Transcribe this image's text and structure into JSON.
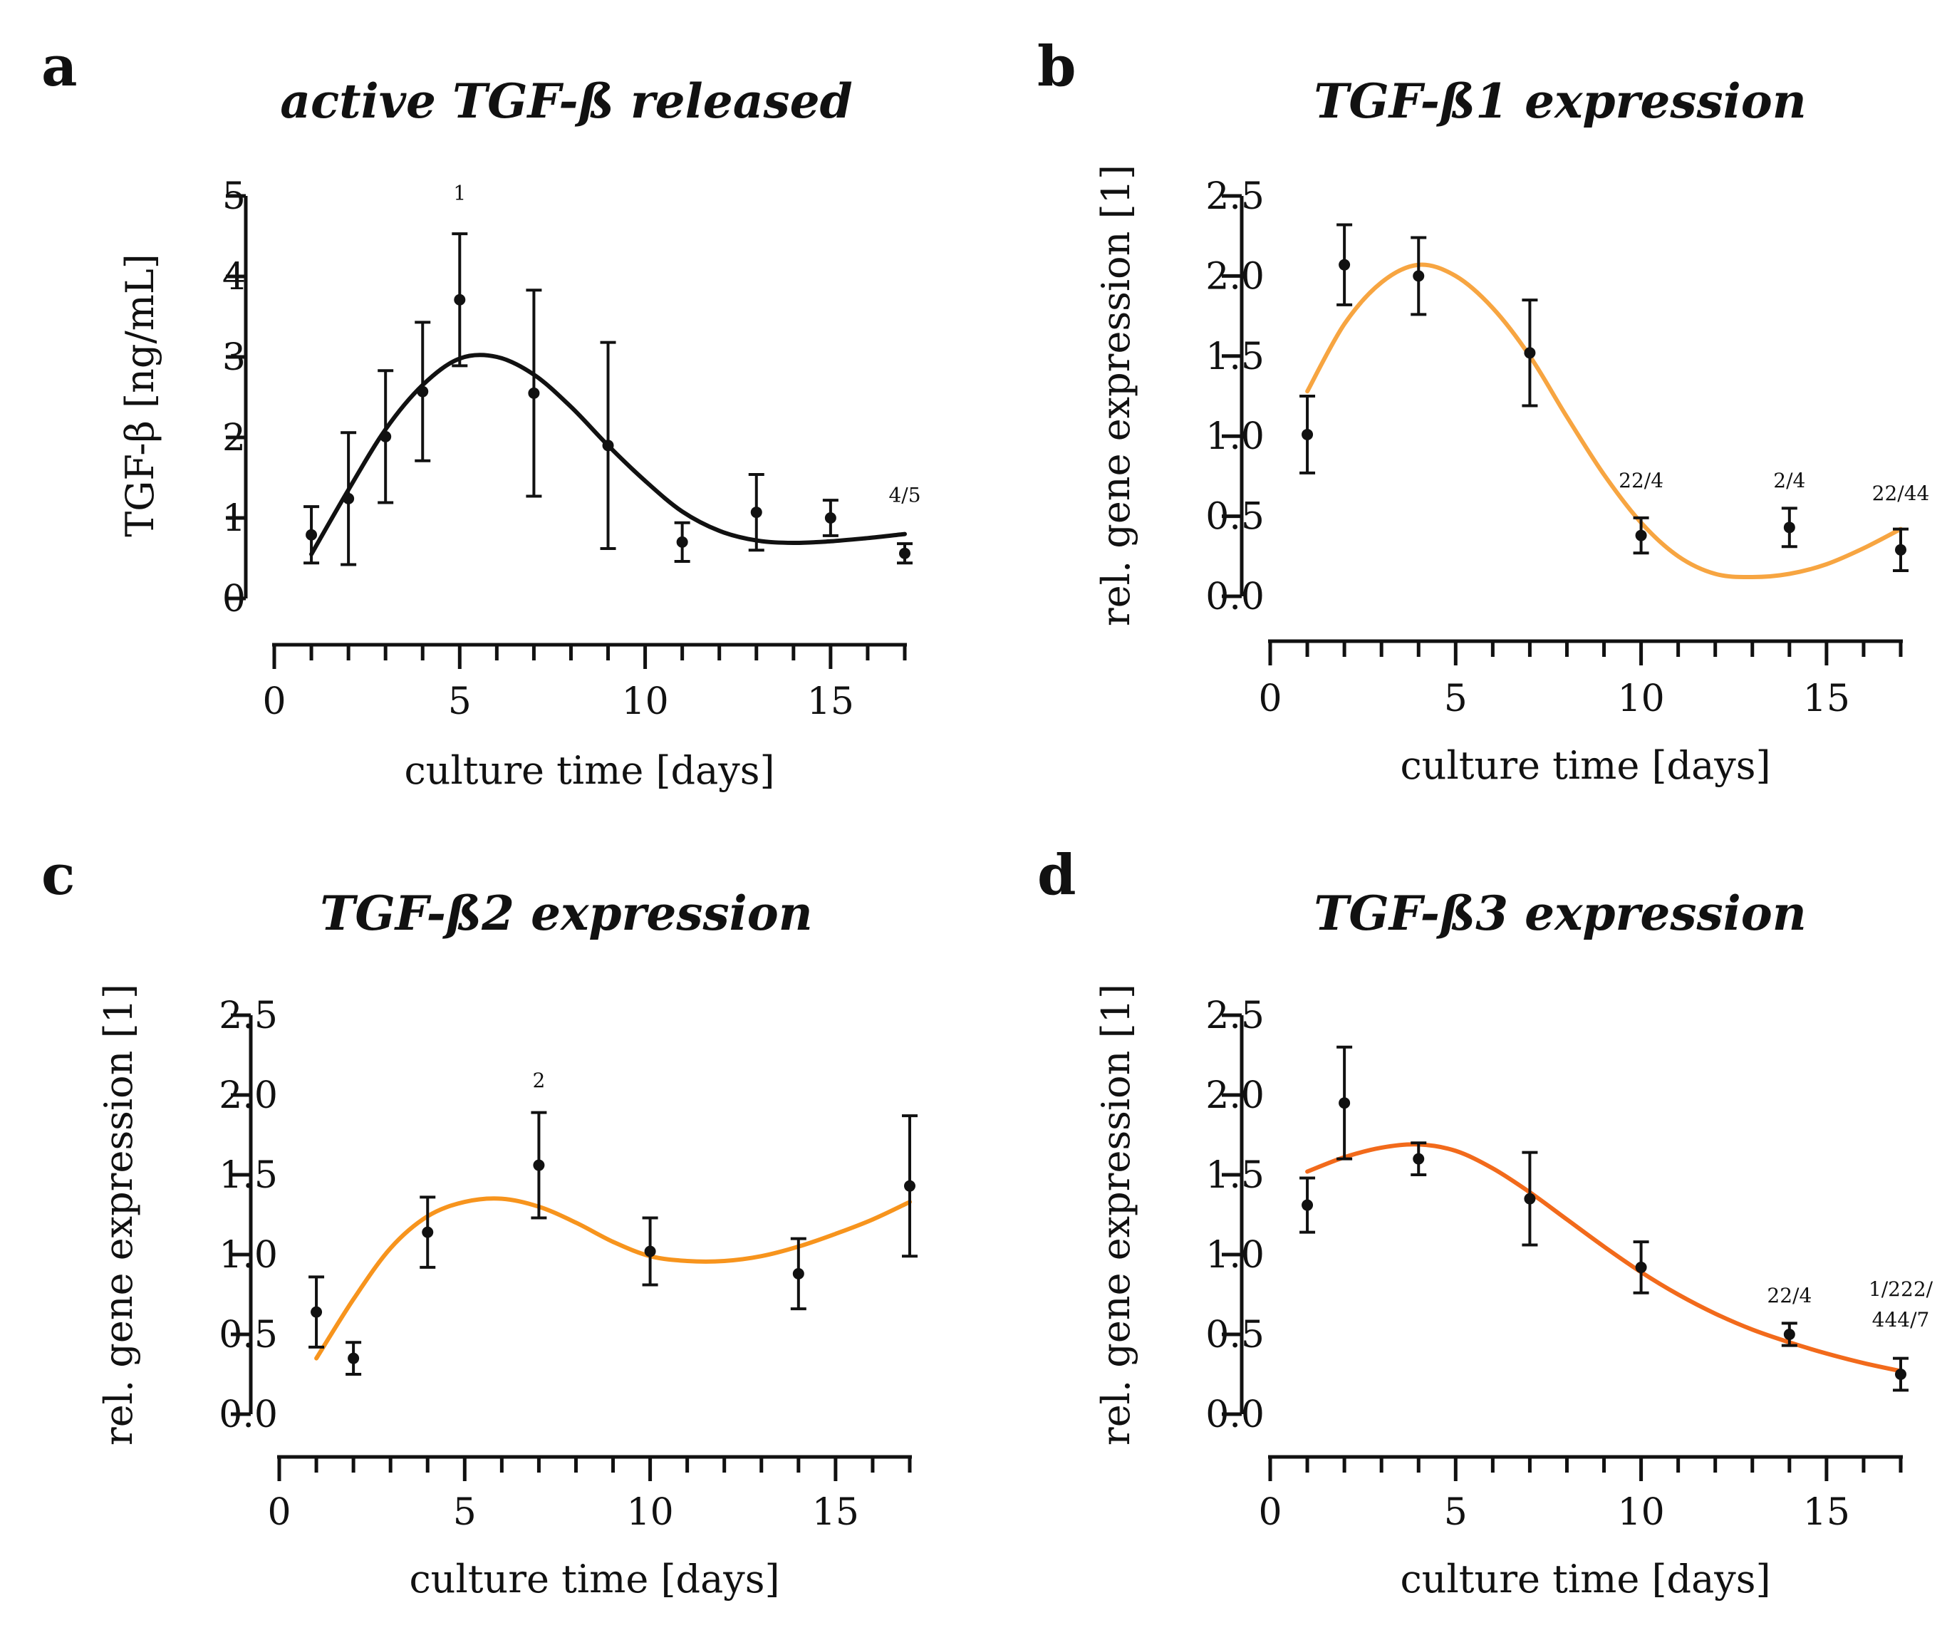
{
  "figure": "TGF-beta release and expression over culture time",
  "chart_data": [
    {
      "type": "scatter",
      "panel": "a",
      "title": "active TGF-ß released",
      "xlabel": "culture time [days]",
      "ylabel": "TGF-β [ng/mL]",
      "xlim": [
        0,
        17
      ],
      "ylim": [
        0,
        5
      ],
      "xticks": [
        "0",
        "5",
        "10",
        "15"
      ],
      "yticks": [
        "0",
        "1",
        "2",
        "3",
        "4",
        "5"
      ],
      "points": {
        "x": [
          1,
          2,
          3,
          4,
          5,
          7,
          9,
          11,
          13,
          15,
          17
        ],
        "y": [
          0.79,
          1.24,
          2.01,
          2.57,
          3.71,
          2.55,
          1.9,
          0.7,
          1.07,
          1.0,
          0.56
        ],
        "err": [
          0.35,
          0.82,
          0.82,
          0.86,
          0.82,
          1.28,
          1.28,
          0.24,
          0.47,
          0.22,
          0.12
        ]
      },
      "fit": {
        "x": [
          1,
          2,
          3,
          4,
          5,
          6,
          7,
          8,
          9,
          10,
          11,
          12,
          13,
          14,
          15,
          16,
          17
        ],
        "y": [
          0.55,
          1.35,
          2.1,
          2.65,
          2.98,
          3.0,
          2.78,
          2.38,
          1.9,
          1.46,
          1.08,
          0.84,
          0.72,
          0.69,
          0.71,
          0.75,
          0.8
        ]
      },
      "line_color": "#111111",
      "annotations": [
        {
          "text": "1",
          "x": 5,
          "y": 4.95
        },
        {
          "text": "4/5",
          "x": 17,
          "y": 1.2
        }
      ]
    },
    {
      "type": "scatter",
      "panel": "b",
      "title": "TGF-ß1 expression",
      "xlabel": "culture time [days]",
      "ylabel": "rel. gene expression [1]",
      "xlim": [
        0,
        17
      ],
      "ylim": [
        0,
        2.5
      ],
      "xticks": [
        "0",
        "5",
        "10",
        "15"
      ],
      "yticks": [
        "0.0",
        "0.5",
        "1.0",
        "1.5",
        "2.0",
        "2.5"
      ],
      "points": {
        "x": [
          1,
          2,
          4,
          7,
          10,
          14,
          17
        ],
        "y": [
          1.01,
          2.07,
          2.0,
          1.52,
          0.38,
          0.43,
          0.29
        ],
        "err": [
          0.24,
          0.25,
          0.24,
          0.33,
          0.11,
          0.12,
          0.13
        ]
      },
      "fit": {
        "x": [
          1,
          2,
          3,
          4,
          5,
          6,
          7,
          8,
          9,
          10,
          11,
          12,
          13,
          14,
          15,
          16,
          17
        ],
        "y": [
          1.28,
          1.7,
          1.96,
          2.07,
          2.0,
          1.8,
          1.5,
          1.12,
          0.76,
          0.46,
          0.25,
          0.14,
          0.12,
          0.14,
          0.2,
          0.3,
          0.42
        ]
      },
      "line_color": "#f7a541",
      "annotations": [
        {
          "text": "22/4",
          "x": 10,
          "y": 0.68
        },
        {
          "text": "2/4",
          "x": 14,
          "y": 0.68
        },
        {
          "text": "22/44",
          "x": 17,
          "y": 0.6
        }
      ]
    },
    {
      "type": "scatter",
      "panel": "c",
      "title": "TGF-ß2 expression",
      "xlabel": "culture time [days]",
      "ylabel": "rel. gene expression [1]",
      "xlim": [
        0,
        17
      ],
      "ylim": [
        0,
        2.5
      ],
      "xticks": [
        "0",
        "5",
        "10",
        "15"
      ],
      "yticks": [
        "0.0",
        "0.5",
        "1.0",
        "1.5",
        "2.0",
        "2.5"
      ],
      "points": {
        "x": [
          1,
          2,
          4,
          7,
          10,
          14,
          17
        ],
        "y": [
          0.64,
          0.35,
          1.14,
          1.56,
          1.02,
          0.88,
          1.43
        ],
        "err": [
          0.22,
          0.1,
          0.22,
          0.33,
          0.21,
          0.22,
          0.44
        ]
      },
      "fit": {
        "x": [
          1,
          2,
          3,
          4,
          5,
          6,
          7,
          8,
          9,
          10,
          11,
          12,
          13,
          14,
          15,
          16,
          17
        ],
        "y": [
          0.35,
          0.72,
          1.04,
          1.24,
          1.33,
          1.35,
          1.3,
          1.2,
          1.08,
          0.99,
          0.96,
          0.96,
          0.99,
          1.05,
          1.13,
          1.22,
          1.33
        ]
      },
      "line_color": "#f7941d",
      "annotations": [
        {
          "text": "2",
          "x": 7,
          "y": 2.05
        }
      ]
    },
    {
      "type": "scatter",
      "panel": "d",
      "title": "TGF-ß3 expression",
      "xlabel": "culture time [days]",
      "ylabel": "rel. gene expression [1]",
      "xlim": [
        0,
        17
      ],
      "ylim": [
        0,
        2.5
      ],
      "xticks": [
        "0",
        "5",
        "10",
        "15"
      ],
      "yticks": [
        "0.0",
        "0.5",
        "1.0",
        "1.5",
        "2.0",
        "2.5"
      ],
      "points": {
        "x": [
          1,
          2,
          4,
          7,
          10,
          14,
          17
        ],
        "y": [
          1.31,
          1.95,
          1.6,
          1.35,
          0.92,
          0.5,
          0.25
        ],
        "err": [
          0.17,
          0.35,
          0.1,
          0.29,
          0.16,
          0.07,
          0.1
        ]
      },
      "fit": {
        "x": [
          1,
          2,
          3,
          4,
          5,
          6,
          7,
          8,
          9,
          10,
          11,
          12,
          13,
          14,
          15,
          16,
          17
        ],
        "y": [
          1.52,
          1.61,
          1.67,
          1.69,
          1.65,
          1.54,
          1.39,
          1.22,
          1.05,
          0.89,
          0.75,
          0.63,
          0.53,
          0.45,
          0.38,
          0.32,
          0.27
        ]
      },
      "line_color": "#f26a1b",
      "annotations": [
        {
          "text": "22/4",
          "x": 14,
          "y": 0.7
        },
        {
          "text": "1/222/",
          "x": 17,
          "y": 0.74
        },
        {
          "text": "444/7",
          "x": 17,
          "y": 0.55
        }
      ]
    }
  ]
}
